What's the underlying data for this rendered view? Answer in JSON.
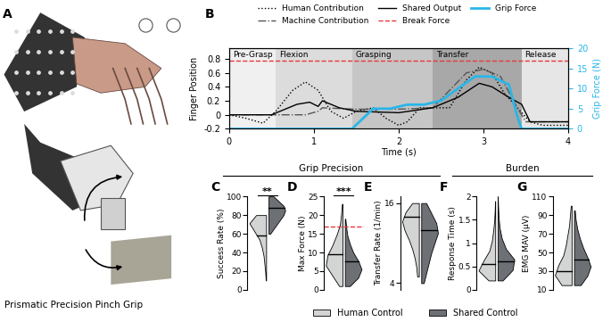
{
  "annotations": {
    "panel_a_label": "A",
    "panel_a_text": "Prismatic Precision Pinch Grip",
    "groups": [
      {
        "text": "Grip Precision",
        "panels": [
          "C",
          "D",
          "E"
        ]
      },
      {
        "text": "Burden",
        "panels": [
          "F",
          "G"
        ]
      }
    ]
  },
  "chart_data": [
    {
      "panel": "B",
      "type": "line",
      "xlabel": "Time (s)",
      "ylabel": "Finger Position",
      "y2label": "Grip Force (N)",
      "xlim": [
        0,
        4
      ],
      "xticks": [
        0,
        1,
        2,
        3,
        4
      ],
      "ylim": [
        -0.2,
        0.95
      ],
      "yticks": [
        -0.2,
        0,
        0.2,
        0.4,
        0.6,
        0.8
      ],
      "y2lim": [
        0,
        20
      ],
      "y2ticks": [
        0,
        5,
        10,
        15,
        20
      ],
      "legend": "upper center",
      "phases": [
        {
          "name": "Pre-Grasp",
          "start": 0,
          "end": 0.55,
          "color": "#f0f0f0"
        },
        {
          "name": "Flexion",
          "start": 0.55,
          "end": 1.45,
          "color": "#dcdcdc"
        },
        {
          "name": "Grasping",
          "start": 1.45,
          "end": 2.4,
          "color": "#c6c6c6"
        },
        {
          "name": "Transfer",
          "start": 2.4,
          "end": 3.45,
          "color": "#a8a8a8"
        },
        {
          "name": "Release",
          "start": 3.45,
          "end": 4,
          "color": "#e6e6e6"
        }
      ],
      "series": [
        {
          "name": "Human Contribution",
          "color": "#000000",
          "line_style": "dotted",
          "x": [
            0,
            0.2,
            0.4,
            0.55,
            0.75,
            0.9,
            1.05,
            1.2,
            1.35,
            1.5,
            1.7,
            1.85,
            2.0,
            2.1,
            2.25,
            2.4,
            2.6,
            2.8,
            2.95,
            3.1,
            3.25,
            3.4,
            3.55,
            3.7,
            4.0
          ],
          "values": [
            0,
            -0.05,
            -0.12,
            0.05,
            0.35,
            0.47,
            0.35,
            0.05,
            -0.05,
            0.05,
            0.1,
            -0.05,
            -0.15,
            -0.1,
            0.1,
            0.1,
            0.1,
            0.5,
            0.68,
            0.6,
            0.3,
            0.1,
            -0.1,
            -0.15,
            -0.15
          ]
        },
        {
          "name": "Machine Contribution",
          "color": "#555555",
          "line_style": "dashdot",
          "x": [
            0,
            0.9,
            1.05,
            1.1,
            1.5,
            2.0,
            2.4,
            2.8,
            3.0,
            3.2,
            3.4,
            3.5,
            4.0
          ],
          "values": [
            0,
            0,
            0.05,
            0.1,
            0.08,
            0.08,
            0.1,
            0.6,
            0.65,
            0.55,
            0.1,
            -0.1,
            -0.1
          ]
        },
        {
          "name": "Shared Output",
          "color": "#000000",
          "line_style": "solid",
          "x": [
            0,
            0.5,
            0.8,
            0.95,
            1.05,
            1.1,
            1.3,
            1.5,
            2.0,
            2.4,
            2.7,
            2.95,
            3.1,
            3.3,
            3.45,
            3.55,
            4.0
          ],
          "values": [
            0,
            0,
            0.15,
            0.18,
            0.12,
            0.2,
            0.1,
            0.05,
            0.03,
            0.1,
            0.25,
            0.45,
            0.4,
            0.25,
            0.15,
            -0.1,
            -0.1
          ]
        },
        {
          "name": "Break Force",
          "color": "#e8383d",
          "line_style": "dashed",
          "axis": "y2",
          "value": 17
        },
        {
          "name": "Grip Force",
          "color": "#29b6e8",
          "line_style": "solid",
          "axis": "y2",
          "x": [
            0,
            1.45,
            1.5,
            1.7,
            1.9,
            2.1,
            2.3,
            2.5,
            2.7,
            2.9,
            3.1,
            3.3,
            3.4,
            3.45,
            4.0
          ],
          "values": [
            0,
            0,
            1,
            5,
            5,
            6,
            6,
            7,
            10,
            13,
            13,
            11,
            3,
            0,
            0
          ]
        }
      ]
    },
    {
      "panel": "C",
      "type": "violin",
      "ylabel": "Success Rate (%)",
      "ylim": [
        0,
        100
      ],
      "yticks": [
        0,
        20,
        40,
        60,
        80,
        100
      ],
      "significance": "**",
      "legend": "lower center",
      "series": [
        {
          "name": "Human Control",
          "color": "#d3d5d5",
          "min": 10,
          "max": 80,
          "median": 58,
          "density": [
            0.02,
            0.05,
            0.1,
            0.15,
            0.25,
            0.4,
            0.7,
            1.0,
            0.6
          ]
        },
        {
          "name": "Shared Control",
          "color": "#6d7075",
          "min": 60,
          "max": 100,
          "median": 88,
          "density": [
            0.1,
            0.3,
            0.5,
            0.7,
            0.9,
            1.0,
            0.9,
            0.6,
            0.3
          ]
        }
      ]
    },
    {
      "panel": "D",
      "type": "violin",
      "ylabel": "Max Force (N)",
      "ylim": [
        0,
        25
      ],
      "yticks": [
        0,
        5,
        10,
        15,
        20,
        25
      ],
      "significance": "***",
      "reference_line": {
        "value": 17,
        "color": "#e8383d",
        "line_style": "dashed"
      },
      "series": [
        {
          "name": "Human Control",
          "color": "#d3d5d5",
          "min": 1,
          "max": 23,
          "median": 9.5,
          "density": [
            0.2,
            0.6,
            1.0,
            0.9,
            0.6,
            0.35,
            0.15,
            0.08,
            0.03
          ]
        },
        {
          "name": "Shared Control",
          "color": "#6d7075",
          "min": 1,
          "max": 19,
          "median": 7.5,
          "density": [
            0.3,
            0.8,
            1.0,
            0.8,
            0.5,
            0.3,
            0.15,
            0.08,
            0.03
          ]
        }
      ]
    },
    {
      "panel": "E",
      "type": "violin",
      "ylabel": "Transfer Rate (1/min)",
      "ylim": [
        3,
        17
      ],
      "yticks": [
        4,
        16
      ],
      "series": [
        {
          "name": "Human Control",
          "color": "#d3d5d5",
          "min": 5,
          "max": 16,
          "median": 14,
          "density": [
            0.1,
            0.15,
            0.25,
            0.4,
            0.6,
            0.85,
            1.0,
            0.8,
            0.4
          ]
        },
        {
          "name": "Shared Control",
          "color": "#6d7075",
          "min": 4,
          "max": 16,
          "median": 12,
          "density": [
            0.15,
            0.3,
            0.45,
            0.6,
            0.8,
            1.0,
            0.9,
            0.6,
            0.3
          ]
        }
      ]
    },
    {
      "panel": "F",
      "type": "violin",
      "ylabel": "Response Time (s)",
      "ylim": [
        0,
        2
      ],
      "yticks": [
        0,
        0.5,
        1,
        1.5,
        2
      ],
      "series": [
        {
          "name": "Human Control",
          "color": "#d3d5d5",
          "min": 0.2,
          "max": 1.9,
          "median": 0.55,
          "density": [
            0.4,
            1.0,
            0.7,
            0.35,
            0.2,
            0.12,
            0.06,
            0.03,
            0.01
          ]
        },
        {
          "name": "Shared Control",
          "color": "#6d7075",
          "min": 0.2,
          "max": 2.0,
          "median": 0.6,
          "density": [
            0.3,
            0.9,
            1.0,
            0.5,
            0.25,
            0.12,
            0.06,
            0.03,
            0.01
          ]
        }
      ]
    },
    {
      "panel": "G",
      "type": "violin",
      "ylabel": "EMG MAV (µV)",
      "ylim": [
        10,
        110
      ],
      "yticks": [
        10,
        30,
        50,
        70,
        90,
        110
      ],
      "series": [
        {
          "name": "Human Control",
          "color": "#d3d5d5",
          "min": 15,
          "max": 100,
          "median": 30,
          "density": [
            0.6,
            1.0,
            0.8,
            0.5,
            0.35,
            0.25,
            0.15,
            0.1,
            0.05
          ]
        },
        {
          "name": "Shared Control",
          "color": "#6d7075",
          "min": 15,
          "max": 95,
          "median": 42,
          "density": [
            0.4,
            0.8,
            1.0,
            0.8,
            0.55,
            0.35,
            0.2,
            0.1,
            0.05
          ]
        }
      ]
    }
  ]
}
